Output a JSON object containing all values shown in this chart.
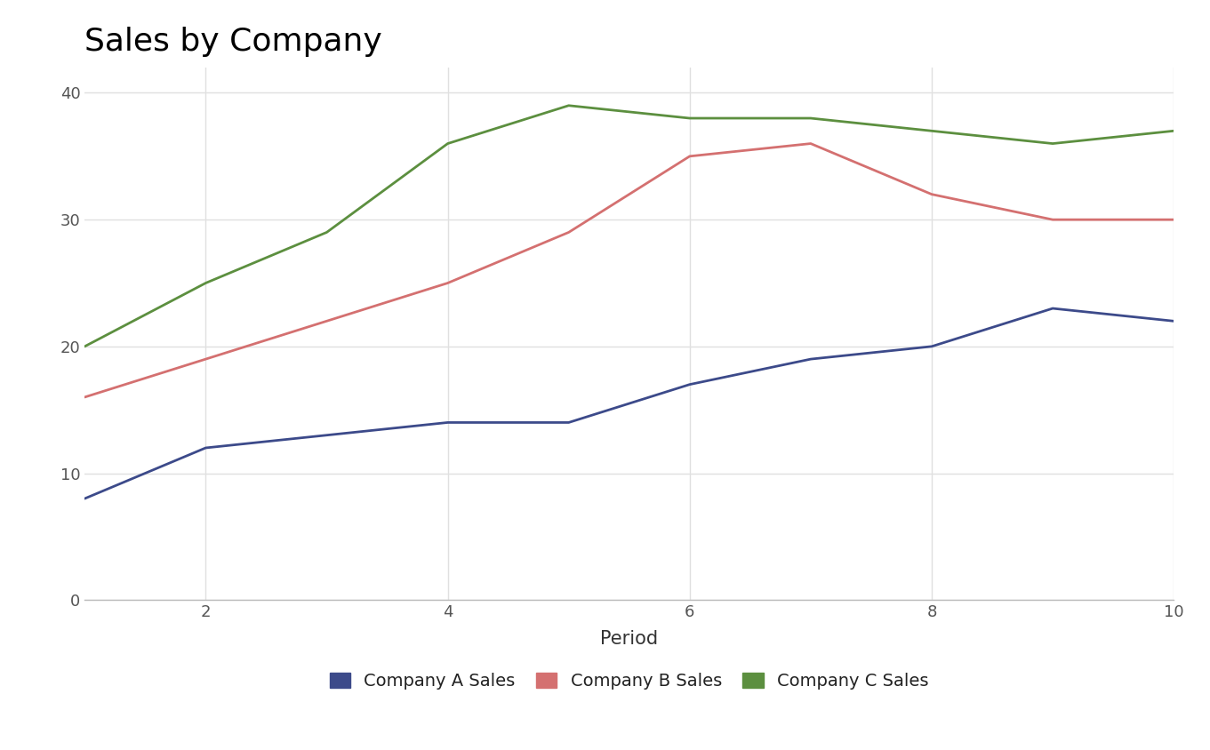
{
  "title": "Sales by Company",
  "xlabel": "Period",
  "x": [
    1,
    2,
    3,
    4,
    5,
    6,
    7,
    8,
    9,
    10
  ],
  "company_a": [
    8,
    12,
    13,
    14,
    14,
    17,
    19,
    20,
    23,
    22
  ],
  "company_b": [
    16,
    19,
    22,
    25,
    29,
    35,
    36,
    32,
    30,
    30
  ],
  "company_c": [
    20,
    25,
    29,
    36,
    39,
    38,
    38,
    37,
    36,
    37
  ],
  "color_a": "#3c4a8a",
  "color_b": "#d47070",
  "color_c": "#5c8f3f",
  "label_a": "Company A Sales",
  "label_b": "Company B Sales",
  "label_c": "Company C Sales",
  "ylim": [
    0,
    42
  ],
  "yticks": [
    0,
    10,
    20,
    30,
    40
  ],
  "xticks": [
    2,
    4,
    6,
    8,
    10
  ],
  "xlim": [
    1,
    10
  ],
  "line_width": 2.0,
  "title_fontsize": 26,
  "axis_label_fontsize": 15,
  "tick_fontsize": 13,
  "legend_fontsize": 14,
  "background_color": "#ffffff",
  "grid_color": "#e0e0e0"
}
